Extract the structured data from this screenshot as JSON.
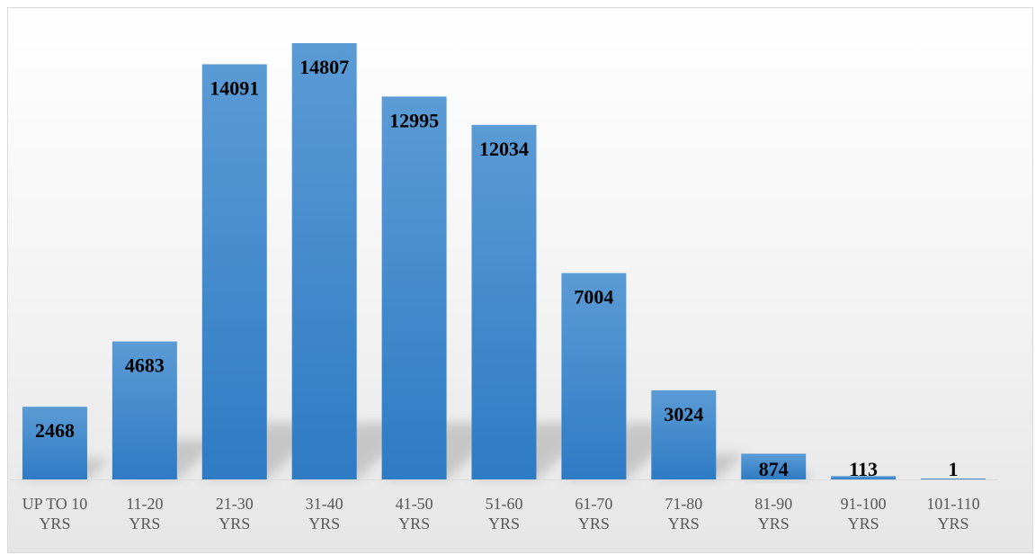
{
  "chart_data": {
    "type": "bar",
    "categories": [
      [
        "UP TO 10",
        "YRS"
      ],
      [
        "11-20",
        "YRS"
      ],
      [
        "21-30",
        "YRS"
      ],
      [
        "31-40",
        "YRS"
      ],
      [
        "41-50",
        "YRS"
      ],
      [
        "51-60",
        "YRS"
      ],
      [
        "61-70",
        "YRS"
      ],
      [
        "71-80",
        "YRS"
      ],
      [
        "81-90",
        "YRS"
      ],
      [
        "91-100",
        "YRS"
      ],
      [
        "101-110",
        "YRS"
      ]
    ],
    "values": [
      2468,
      4683,
      14091,
      14807,
      12995,
      12034,
      7004,
      3024,
      874,
      113,
      1
    ],
    "data_labels": [
      "2468",
      "4683",
      "14091",
      "14807",
      "12995",
      "12034",
      "7004",
      "3024",
      "874",
      "113",
      "1"
    ],
    "ylim": [
      0,
      14807
    ],
    "grid": false,
    "legend": "none",
    "colors": {
      "bar_top": "#5b9bd5",
      "bar_bottom": "#2e7bc4",
      "label": "#000000",
      "tick": "#595959",
      "axis": "#d9d9d9"
    }
  }
}
